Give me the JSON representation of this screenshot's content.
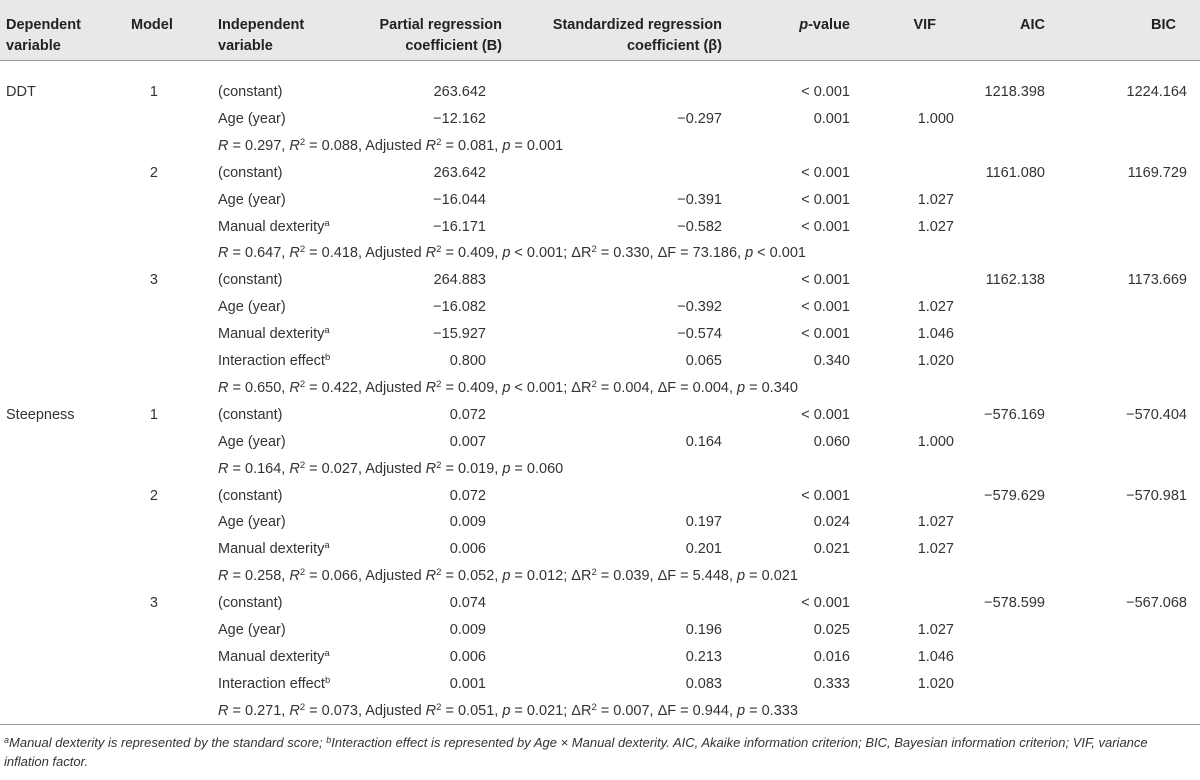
{
  "headers": {
    "dependent": [
      "Dependent",
      "variable"
    ],
    "model": "Model",
    "independent": [
      "Independent",
      "variable"
    ],
    "b": [
      "Partial regression",
      "coefficient (B)"
    ],
    "beta": [
      "Standardized regression",
      "coefficient (β)"
    ],
    "p_italic": "p",
    "p_rest": "-value",
    "vif": "VIF",
    "aic": "AIC",
    "bic": "BIC"
  },
  "rows": [
    {
      "kind": "data",
      "dep": "DDT",
      "model": "1",
      "iv": "(constant)",
      "b": "263.642",
      "p": "< 0.001",
      "aic": "1218.398",
      "bic": "1224.164"
    },
    {
      "kind": "data",
      "iv": "Age (year)",
      "b": "−12.162",
      "beta": "−0.297",
      "p": "0.001",
      "vif": "1.000"
    },
    {
      "kind": "summary",
      "segs": [
        [
          "i",
          "R"
        ],
        [
          "",
          " = 0.297, "
        ],
        [
          "i",
          "R"
        ],
        [
          "s",
          "2"
        ],
        [
          "",
          " = 0.088, Adjusted "
        ],
        [
          "i",
          "R"
        ],
        [
          "s",
          "2"
        ],
        [
          "",
          " = 0.081, "
        ],
        [
          "i",
          "p"
        ],
        [
          "",
          " = 0.001"
        ]
      ]
    },
    {
      "kind": "data",
      "model": "2",
      "iv": "(constant)",
      "b": "263.642",
      "p": "< 0.001",
      "aic": "1161.080",
      "bic": "1169.729"
    },
    {
      "kind": "data",
      "iv": "Age (year)",
      "b": "−16.044",
      "beta": "−0.391",
      "p": "< 0.001",
      "vif": "1.027"
    },
    {
      "kind": "data",
      "iv": "Manual dexterity",
      "sup": "a",
      "b": "−16.171",
      "beta": "−0.582",
      "p": "< 0.001",
      "vif": "1.027"
    },
    {
      "kind": "summary",
      "segs": [
        [
          "i",
          "R"
        ],
        [
          "",
          " = 0.647, "
        ],
        [
          "i",
          "R"
        ],
        [
          "s",
          "2"
        ],
        [
          "",
          " = 0.418, Adjusted "
        ],
        [
          "i",
          "R"
        ],
        [
          "s",
          "2"
        ],
        [
          "",
          " = 0.409, "
        ],
        [
          "i",
          "p"
        ],
        [
          "",
          " < 0.001; ΔR"
        ],
        [
          "s",
          "2"
        ],
        [
          "",
          " = 0.330, ΔF = 73.186, "
        ],
        [
          "i",
          "p"
        ],
        [
          "",
          " < 0.001"
        ]
      ]
    },
    {
      "kind": "data",
      "model": "3",
      "iv": "(constant)",
      "b": "264.883",
      "p": "< 0.001",
      "aic": "1162.138",
      "bic": "1173.669"
    },
    {
      "kind": "data",
      "iv": "Age (year)",
      "b": "−16.082",
      "beta": "−0.392",
      "p": "< 0.001",
      "vif": "1.027"
    },
    {
      "kind": "data",
      "iv": "Manual dexterity",
      "sup": "a",
      "b": "−15.927",
      "beta": "−0.574",
      "p": "< 0.001",
      "vif": "1.046"
    },
    {
      "kind": "data",
      "iv": "Interaction effect",
      "sup": "b",
      "b": "0.800",
      "beta": "0.065",
      "p": "0.340",
      "vif": "1.020"
    },
    {
      "kind": "summary",
      "segs": [
        [
          "i",
          "R"
        ],
        [
          "",
          " = 0.650, "
        ],
        [
          "i",
          "R"
        ],
        [
          "s",
          "2"
        ],
        [
          "",
          " = 0.422, Adjusted "
        ],
        [
          "i",
          "R"
        ],
        [
          "s",
          "2"
        ],
        [
          "",
          " = 0.409, "
        ],
        [
          "i",
          "p"
        ],
        [
          "",
          " < 0.001; ΔR"
        ],
        [
          "s",
          "2"
        ],
        [
          "",
          " = 0.004, ΔF = 0.004, "
        ],
        [
          "i",
          "p"
        ],
        [
          "",
          " = 0.340"
        ]
      ]
    },
    {
      "kind": "data",
      "dep": "Steepness",
      "model": "1",
      "iv": "(constant)",
      "b": "0.072",
      "p": "< 0.001",
      "aic": "−576.169",
      "bic": "−570.404"
    },
    {
      "kind": "data",
      "iv": "Age (year)",
      "b": "0.007",
      "beta": "0.164",
      "p": "0.060",
      "vif": "1.000"
    },
    {
      "kind": "summary",
      "segs": [
        [
          "i",
          "R"
        ],
        [
          "",
          " = 0.164, "
        ],
        [
          "i",
          "R"
        ],
        [
          "s",
          "2"
        ],
        [
          "",
          " = 0.027, Adjusted "
        ],
        [
          "i",
          "R"
        ],
        [
          "s",
          "2"
        ],
        [
          "",
          " = 0.019, "
        ],
        [
          "i",
          "p"
        ],
        [
          "",
          " = 0.060"
        ]
      ]
    },
    {
      "kind": "data",
      "model": "2",
      "iv": "(constant)",
      "b": "0.072",
      "p": "< 0.001",
      "aic": "−579.629",
      "bic": "−570.981"
    },
    {
      "kind": "data",
      "iv": "Age (year)",
      "b": "0.009",
      "beta": "0.197",
      "p": "0.024",
      "vif": "1.027"
    },
    {
      "kind": "data",
      "iv": "Manual dexterity",
      "sup": "a",
      "b": "0.006",
      "beta": "0.201",
      "p": "0.021",
      "vif": "1.027"
    },
    {
      "kind": "summary",
      "segs": [
        [
          "i",
          "R"
        ],
        [
          "",
          " = 0.258, "
        ],
        [
          "i",
          "R"
        ],
        [
          "s",
          "2"
        ],
        [
          "",
          " = 0.066, Adjusted "
        ],
        [
          "i",
          "R"
        ],
        [
          "s",
          "2"
        ],
        [
          "",
          " = 0.052, "
        ],
        [
          "i",
          "p"
        ],
        [
          "",
          " = 0.012; ΔR"
        ],
        [
          "s",
          "2"
        ],
        [
          "",
          " = 0.039, ΔF = 5.448, "
        ],
        [
          "i",
          "p"
        ],
        [
          "",
          " = 0.021"
        ]
      ]
    },
    {
      "kind": "data",
      "model": "3",
      "iv": "(constant)",
      "b": "0.074",
      "p": "< 0.001",
      "aic": "−578.599",
      "bic": "−567.068"
    },
    {
      "kind": "data",
      "iv": "Age (year)",
      "b": "0.009",
      "beta": "0.196",
      "p": "0.025",
      "vif": "1.027"
    },
    {
      "kind": "data",
      "iv": "Manual dexterity",
      "sup": "a",
      "b": "0.006",
      "beta": "0.213",
      "p": "0.016",
      "vif": "1.046"
    },
    {
      "kind": "data",
      "iv": "Interaction effect",
      "sup": "b",
      "b": "0.001",
      "beta": "0.083",
      "p": "0.333",
      "vif": "1.020"
    },
    {
      "kind": "summary",
      "segs": [
        [
          "i",
          "R"
        ],
        [
          "",
          " = 0.271, "
        ],
        [
          "i",
          "R"
        ],
        [
          "s",
          "2"
        ],
        [
          "",
          " = 0.073, Adjusted "
        ],
        [
          "i",
          "R"
        ],
        [
          "s",
          "2"
        ],
        [
          "",
          " = 0.051, "
        ],
        [
          "i",
          "p"
        ],
        [
          "",
          " = 0.021; ΔR"
        ],
        [
          "s",
          "2"
        ],
        [
          "",
          " = 0.007, ΔF = 0.944, "
        ],
        [
          "i",
          "p"
        ],
        [
          "",
          " = 0.333"
        ]
      ]
    }
  ],
  "footnote": {
    "sup_a": "a",
    "text_a": "Manual dexterity is represented by the standard score; ",
    "sup_b": "b",
    "text_b": "Interaction effect is represented by Age × Manual dexterity. AIC, Akaike information criterion; BIC, Bayesian information criterion; VIF, variance inflation factor."
  }
}
